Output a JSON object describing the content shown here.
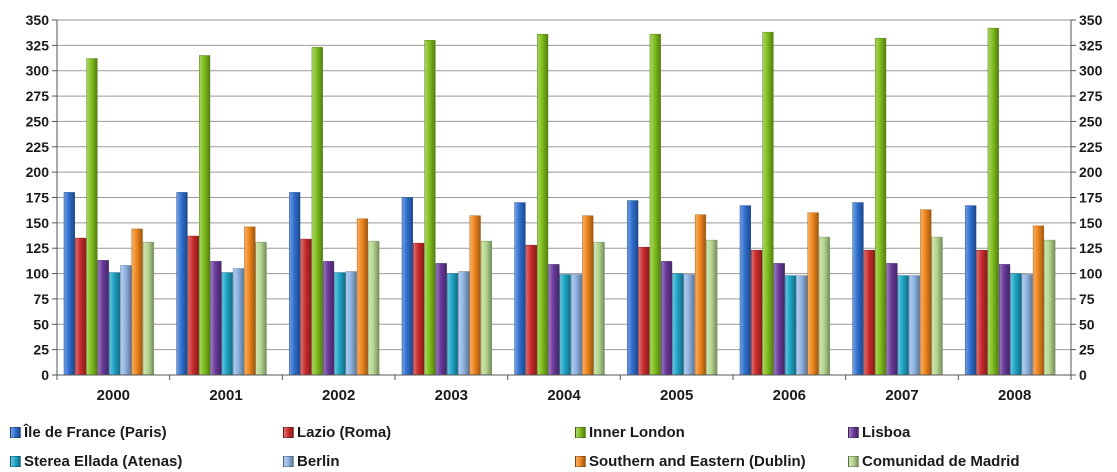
{
  "chart_data": {
    "type": "bar",
    "categories": [
      "2000",
      "2001",
      "2002",
      "2003",
      "2004",
      "2005",
      "2006",
      "2007",
      "2008"
    ],
    "series": [
      {
        "name": "Île de France (Paris)",
        "color": "#2e6fd0",
        "values": [
          180,
          180,
          180,
          175,
          170,
          172,
          167,
          170,
          167
        ]
      },
      {
        "name": "Lazio (Roma)",
        "color": "#cc2b2b",
        "values": [
          135,
          137,
          134,
          130,
          128,
          126,
          123,
          123,
          123
        ]
      },
      {
        "name": "Inner London",
        "color": "#7fbf1c",
        "values": [
          312,
          315,
          323,
          330,
          336,
          336,
          338,
          332,
          342
        ]
      },
      {
        "name": "Lisboa",
        "color": "#6a3a9c",
        "values": [
          113,
          112,
          112,
          110,
          109,
          112,
          110,
          110,
          109
        ]
      },
      {
        "name": "Sterea Ellada (Atenas)",
        "color": "#1ea5c8",
        "values": [
          101,
          101,
          101,
          100,
          99,
          100,
          98,
          98,
          100
        ]
      },
      {
        "name": "Berlin",
        "color": "#8fb4e3",
        "values": [
          108,
          105,
          102,
          102,
          99,
          99,
          98,
          98,
          99
        ]
      },
      {
        "name": "Southern and Eastern (Dublin)",
        "color": "#f0861c",
        "values": [
          144,
          146,
          154,
          157,
          157,
          158,
          160,
          163,
          147
        ]
      },
      {
        "name": "Comunidad de Madrid",
        "color": "#b5d78f",
        "values": [
          131,
          131,
          132,
          132,
          131,
          133,
          136,
          136,
          133
        ]
      }
    ],
    "y_ticks": [
      "0",
      "25",
      "50",
      "75",
      "100",
      "125",
      "150",
      "175",
      "200",
      "225",
      "250",
      "275",
      "300",
      "325",
      "350"
    ],
    "ylim": [
      0,
      350
    ],
    "grid": true,
    "legend_position": "bottom"
  }
}
